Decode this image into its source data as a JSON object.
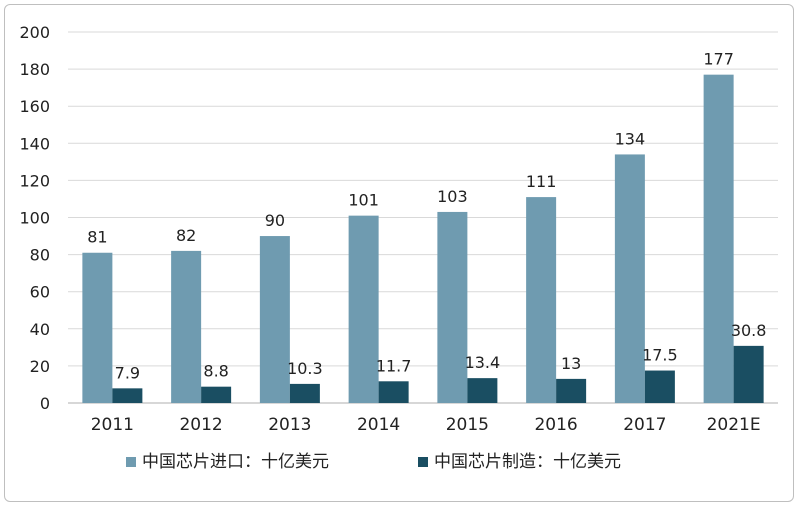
{
  "chart_data": {
    "type": "bar",
    "title": "",
    "xlabel": "",
    "ylabel": "",
    "categories": [
      "2011",
      "2012",
      "2013",
      "2014",
      "2015",
      "2016",
      "2017",
      "2021E"
    ],
    "series": [
      {
        "name": "中国芯片进口：十亿美元",
        "color": "#6f9bb0",
        "values": [
          81,
          82,
          90,
          101,
          103,
          111,
          134,
          177
        ],
        "labels": [
          "81",
          "82",
          "90",
          "101",
          "103",
          "111",
          "134",
          "177"
        ]
      },
      {
        "name": "中国芯片制造：十亿美元",
        "color": "#1a4e62",
        "values": [
          7.9,
          8.8,
          10.3,
          11.7,
          13.4,
          13,
          17.5,
          30.8
        ],
        "labels": [
          "7.9",
          "8.8",
          "10.3",
          "11.7",
          "13.4",
          "13",
          "17.5",
          "30.8"
        ]
      }
    ],
    "ylim": [
      0,
      200
    ],
    "yticks": [
      0,
      20,
      40,
      60,
      80,
      100,
      120,
      140,
      160,
      180,
      200
    ],
    "grid": true,
    "legend": "bottom"
  }
}
